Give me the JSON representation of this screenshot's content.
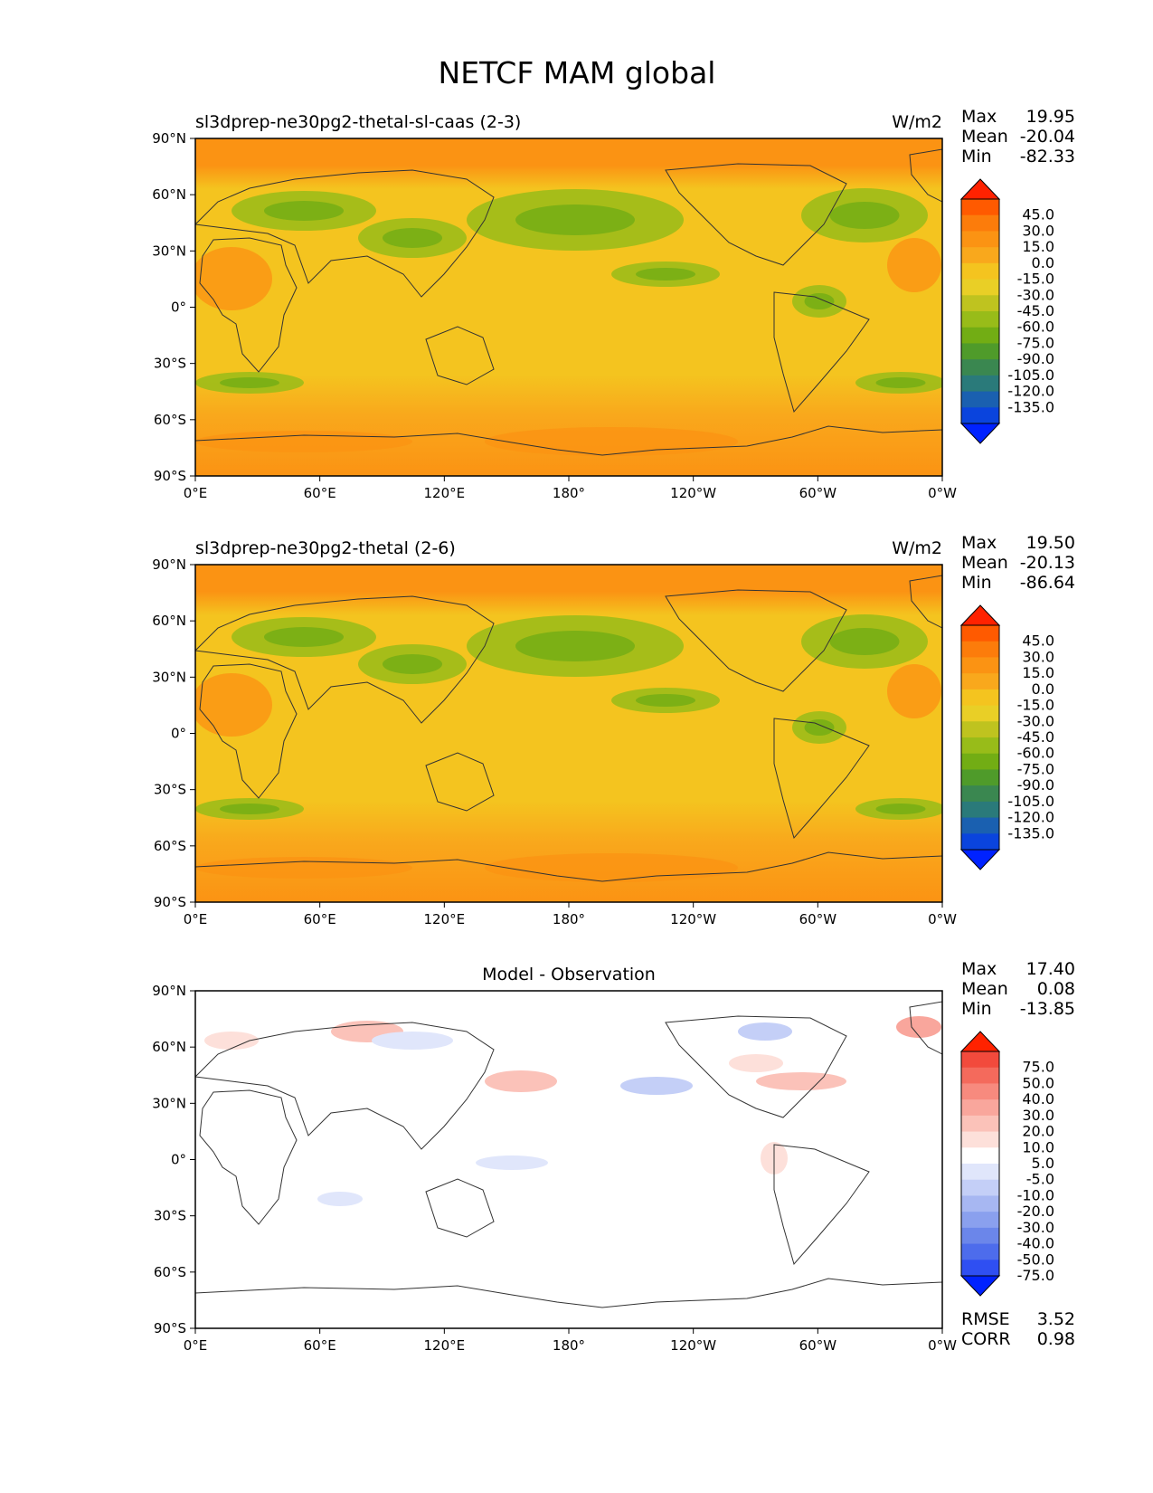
{
  "figure": {
    "title": "NETCF MAM global"
  },
  "axes": {
    "lat_ticks": [
      "90°N",
      "60°N",
      "30°N",
      "0°",
      "30°S",
      "60°S",
      "90°S"
    ],
    "lon_ticks": [
      "0°E",
      "60°E",
      "120°E",
      "180°",
      "120°W",
      "60°W",
      "0°W"
    ]
  },
  "panels": [
    {
      "title": "sl3dprep-ne30pg2-thetal-sl-caas (2-3)",
      "units": "W/m2",
      "stats": [
        {
          "label": "Max",
          "value": "19.95"
        },
        {
          "label": "Mean",
          "value": "-20.04"
        },
        {
          "label": "Min",
          "value": "-82.33"
        }
      ],
      "colorbar": {
        "labels": [
          "45.0",
          "30.0",
          "15.0",
          "0.0",
          "-15.0",
          "-30.0",
          "-45.0",
          "-60.0",
          "-75.0",
          "-90.0",
          "-105.0",
          "-120.0",
          "-135.0"
        ],
        "colors": [
          "#ff2200",
          "#ff5a00",
          "#fc7c0b",
          "#fb9313",
          "#f9a81c",
          "#f4c41f",
          "#e9cf26",
          "#bfc31f",
          "#98bc19",
          "#72ad14",
          "#4f9b2a",
          "#3a8750",
          "#2a7a7a",
          "#1a60b0",
          "#0a44dd",
          "#0022ff"
        ]
      }
    },
    {
      "title": "sl3dprep-ne30pg2-thetal (2-6)",
      "units": "W/m2",
      "stats": [
        {
          "label": "Max",
          "value": "19.50"
        },
        {
          "label": "Mean",
          "value": "-20.13"
        },
        {
          "label": "Min",
          "value": "-86.64"
        }
      ],
      "colorbar": {
        "labels": [
          "45.0",
          "30.0",
          "15.0",
          "0.0",
          "-15.0",
          "-30.0",
          "-45.0",
          "-60.0",
          "-75.0",
          "-90.0",
          "-105.0",
          "-120.0",
          "-135.0"
        ],
        "colors": [
          "#ff2200",
          "#ff5a00",
          "#fc7c0b",
          "#fb9313",
          "#f9a81c",
          "#f4c41f",
          "#e9cf26",
          "#bfc31f",
          "#98bc19",
          "#72ad14",
          "#4f9b2a",
          "#3a8750",
          "#2a7a7a",
          "#1a60b0",
          "#0a44dd",
          "#0022ff"
        ]
      }
    },
    {
      "title": "Model - Observation",
      "units": "",
      "stats": [
        {
          "label": "Max",
          "value": "17.40"
        },
        {
          "label": "Mean",
          "value": "0.08"
        },
        {
          "label": "Min",
          "value": "-13.85"
        }
      ],
      "extra_stats": [
        {
          "label": "RMSE",
          "value": "3.52"
        },
        {
          "label": "CORR",
          "value": "0.98"
        }
      ],
      "colorbar": {
        "labels": [
          "75.0",
          "50.0",
          "40.0",
          "30.0",
          "20.0",
          "10.0",
          "5.0",
          "-5.0",
          "-10.0",
          "-20.0",
          "-30.0",
          "-40.0",
          "-50.0",
          "-75.0"
        ],
        "colors": [
          "#ff2200",
          "#f24a3c",
          "#f46a5c",
          "#f78a7e",
          "#f9a69c",
          "#fbc2b9",
          "#fde0da",
          "#ffffff",
          "#e0e6fb",
          "#c4cff7",
          "#a7b7f2",
          "#8aa0ee",
          "#6b86ea",
          "#4d6cec",
          "#2f4ff2",
          "#0022ff"
        ]
      }
    }
  ]
}
